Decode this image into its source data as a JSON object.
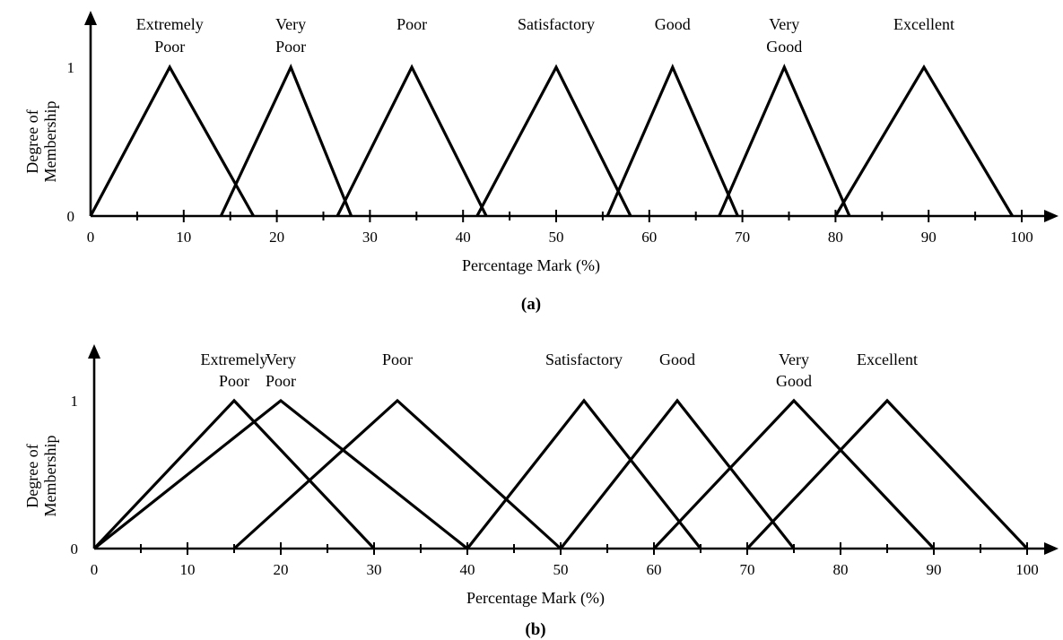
{
  "chart_data": [
    {
      "type": "line",
      "panel_label": "(a)",
      "xlabel": "Percentage Mark (%)",
      "ylabel": [
        "Degree of",
        "Membership"
      ],
      "xlim": [
        0,
        100
      ],
      "ylim": [
        0,
        1
      ],
      "x_ticks": [
        0,
        10,
        20,
        30,
        40,
        50,
        60,
        70,
        80,
        90,
        100
      ],
      "x_minor_ticks": [
        5,
        15,
        25,
        35,
        45,
        55,
        65,
        75,
        85,
        95
      ],
      "y_ticks": [
        0,
        1
      ],
      "series": [
        {
          "name": [
            "Extremely",
            "Poor"
          ],
          "x": [
            0,
            8.5,
            17.5
          ],
          "y": [
            0,
            1,
            0
          ]
        },
        {
          "name": [
            "Very",
            "Poor"
          ],
          "x": [
            14,
            21.5,
            28
          ],
          "y": [
            0,
            1,
            0
          ]
        },
        {
          "name": [
            "Poor"
          ],
          "x": [
            26.5,
            34.5,
            42.5
          ],
          "y": [
            0,
            1,
            0
          ]
        },
        {
          "name": [
            "Satisfactory"
          ],
          "x": [
            41.5,
            50,
            58
          ],
          "y": [
            0,
            1,
            0
          ]
        },
        {
          "name": [
            "Good"
          ],
          "x": [
            55.5,
            62.5,
            69.5
          ],
          "y": [
            0,
            1,
            0
          ]
        },
        {
          "name": [
            "Very",
            "Good"
          ],
          "x": [
            67.5,
            74.5,
            81.5
          ],
          "y": [
            0,
            1,
            0
          ]
        },
        {
          "name": [
            "Excellent"
          ],
          "x": [
            80,
            89.5,
            99
          ],
          "y": [
            0,
            1,
            0
          ]
        }
      ]
    },
    {
      "type": "line",
      "panel_label": "(b)",
      "xlabel": "Percentage Mark (%)",
      "ylabel": [
        "Degree of",
        "Membership"
      ],
      "xlim": [
        0,
        100
      ],
      "ylim": [
        0,
        1
      ],
      "x_ticks": [
        0,
        10,
        20,
        30,
        40,
        50,
        60,
        70,
        80,
        90,
        100
      ],
      "x_minor_ticks": [
        5,
        15,
        25,
        35,
        45,
        55,
        65,
        75,
        85,
        95
      ],
      "y_ticks": [
        0,
        1
      ],
      "series": [
        {
          "name": [
            "Extremely",
            "Poor"
          ],
          "x": [
            0,
            15,
            30
          ],
          "y": [
            0,
            1,
            0
          ]
        },
        {
          "name": [
            "Very",
            "Poor"
          ],
          "x": [
            0,
            20,
            40
          ],
          "y": [
            0,
            1,
            0
          ]
        },
        {
          "name": [
            "Poor"
          ],
          "x": [
            15,
            32.5,
            50
          ],
          "y": [
            0,
            1,
            0
          ]
        },
        {
          "name": [
            "Satisfactory"
          ],
          "x": [
            40,
            52.5,
            65
          ],
          "y": [
            0,
            1,
            0
          ]
        },
        {
          "name": [
            "Good"
          ],
          "x": [
            50,
            62.5,
            75
          ],
          "y": [
            0,
            1,
            0
          ]
        },
        {
          "name": [
            "Very",
            "Good"
          ],
          "x": [
            60,
            75,
            90
          ],
          "y": [
            0,
            1,
            0
          ]
        },
        {
          "name": [
            "Excellent"
          ],
          "x": [
            70,
            85,
            100
          ],
          "y": [
            0,
            1,
            0
          ]
        }
      ]
    }
  ]
}
